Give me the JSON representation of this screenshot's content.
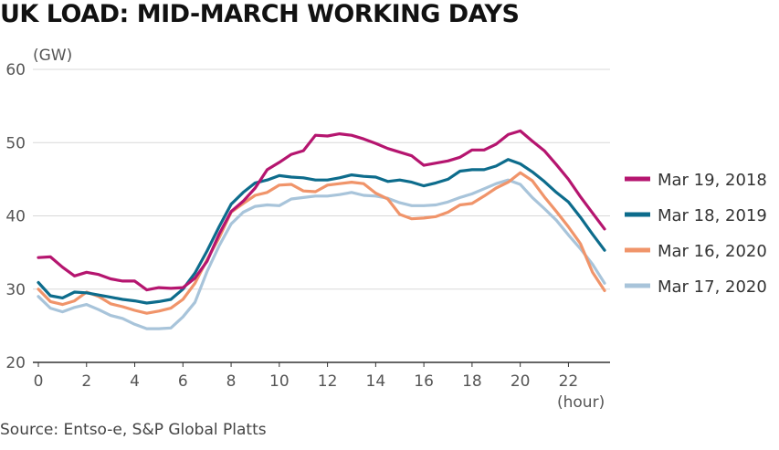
{
  "chart_data": {
    "type": "line",
    "title": "UK LOAD: MID-MARCH WORKING DAYS",
    "ylabel": "(GW)",
    "xlabel": "(hour)",
    "source": "Source: Entso-e, S&P Global Platts",
    "ylim": [
      20,
      60
    ],
    "xlim": [
      0,
      23.5
    ],
    "y_ticks": [
      "20",
      "30",
      "40",
      "50",
      "60"
    ],
    "x_ticks": [
      "0",
      "2",
      "4",
      "6",
      "8",
      "10",
      "12",
      "14",
      "16",
      "18",
      "20",
      "22"
    ],
    "grid": "horizontal",
    "legend_position": "right",
    "x": [
      0,
      0.5,
      1,
      1.5,
      2,
      2.5,
      3,
      3.5,
      4,
      4.5,
      5,
      5.5,
      6,
      6.5,
      7,
      7.5,
      8,
      8.5,
      9,
      9.5,
      10,
      10.5,
      11,
      11.5,
      12,
      12.5,
      13,
      13.5,
      14,
      14.5,
      15,
      15.5,
      16,
      16.5,
      17,
      17.5,
      18,
      18.5,
      19,
      19.5,
      20,
      20.5,
      21,
      21.5,
      22,
      22.5,
      23,
      23.5
    ],
    "series": [
      {
        "name": "Mar 19, 2018",
        "color": "#b5156f",
        "values": [
          34.3,
          34.4,
          33.0,
          31.8,
          32.3,
          32.0,
          31.4,
          31.1,
          31.1,
          29.9,
          30.2,
          30.1,
          30.2,
          31.5,
          33.8,
          37.5,
          40.6,
          42.0,
          43.8,
          46.3,
          47.3,
          48.4,
          48.9,
          51.0,
          50.9,
          51.2,
          51.0,
          50.5,
          49.9,
          49.2,
          48.7,
          48.2,
          46.9,
          47.2,
          47.5,
          48.0,
          49.0,
          49.0,
          49.8,
          51.1,
          51.6,
          50.2,
          48.9,
          47.0,
          45.0,
          42.6,
          40.4,
          38.2
        ]
      },
      {
        "name": "Mar 18, 2019",
        "color": "#0d6c8c",
        "values": [
          30.9,
          29.1,
          28.8,
          29.6,
          29.5,
          29.2,
          28.9,
          28.6,
          28.4,
          28.1,
          28.3,
          28.6,
          30.0,
          32.2,
          35.2,
          38.5,
          41.6,
          43.2,
          44.5,
          44.9,
          45.5,
          45.3,
          45.2,
          44.9,
          44.9,
          45.2,
          45.6,
          45.4,
          45.3,
          44.7,
          44.9,
          44.6,
          44.1,
          44.5,
          45.0,
          46.1,
          46.3,
          46.3,
          46.8,
          47.7,
          47.1,
          46.0,
          44.7,
          43.2,
          41.9,
          39.8,
          37.5,
          35.3
        ]
      },
      {
        "name": "Mar 16, 2020",
        "color": "#f0946a",
        "values": [
          30.0,
          28.3,
          27.9,
          28.4,
          29.6,
          29.0,
          28.0,
          27.6,
          27.1,
          26.7,
          27.0,
          27.4,
          28.6,
          30.8,
          34.0,
          37.0,
          40.5,
          41.7,
          42.8,
          43.2,
          44.2,
          44.3,
          43.4,
          43.3,
          44.2,
          44.4,
          44.6,
          44.4,
          43.1,
          42.3,
          40.2,
          39.6,
          39.7,
          39.9,
          40.5,
          41.5,
          41.7,
          42.7,
          43.8,
          44.6,
          45.9,
          44.8,
          42.6,
          40.6,
          38.5,
          36.2,
          32.3,
          29.8
        ]
      },
      {
        "name": "Mar 17, 2020",
        "color": "#a8c4da",
        "values": [
          29.0,
          27.4,
          26.9,
          27.5,
          27.9,
          27.2,
          26.4,
          26.0,
          25.2,
          24.6,
          24.6,
          24.7,
          26.2,
          28.2,
          32.4,
          35.9,
          38.9,
          40.5,
          41.3,
          41.5,
          41.4,
          42.3,
          42.5,
          42.7,
          42.7,
          42.9,
          43.2,
          42.8,
          42.7,
          42.4,
          41.8,
          41.4,
          41.4,
          41.5,
          41.9,
          42.5,
          43.0,
          43.7,
          44.4,
          44.9,
          44.3,
          42.5,
          41.0,
          39.4,
          37.4,
          35.5,
          33.4,
          30.8
        ]
      }
    ]
  }
}
